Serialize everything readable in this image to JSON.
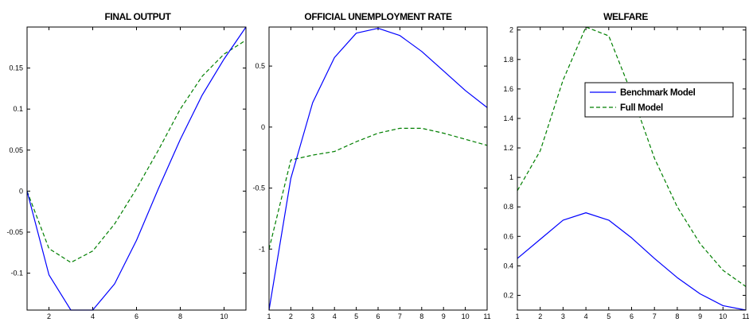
{
  "colors": {
    "benchmark": "#0000ff",
    "full": "#007f00",
    "axis": "#000000",
    "background": "#ffffff"
  },
  "legend": {
    "items": [
      {
        "label": "Benchmark Model",
        "style": "solid",
        "color": "#0000ff"
      },
      {
        "label": "Full Model",
        "style": "dashed",
        "color": "#007f00"
      }
    ],
    "location": "upper-middle of third panel"
  },
  "chart_data": [
    {
      "type": "line",
      "title": "FINAL OUTPUT",
      "xlabel": "",
      "ylabel": "",
      "xlim": [
        1,
        11
      ],
      "ylim": [
        -0.145,
        0.2
      ],
      "xticks": [
        2,
        4,
        6,
        8,
        10
      ],
      "yticks": [
        -0.1,
        -0.05,
        0,
        0.05,
        0.1,
        0.15
      ],
      "ytick_labels": [
        "-0.1",
        "-0.05",
        "0",
        "0.05",
        "0.1",
        "0.15"
      ],
      "grid": false,
      "x": [
        1,
        2,
        3,
        4,
        5,
        6,
        7,
        8,
        9,
        10,
        11
      ],
      "series": [
        {
          "name": "Benchmark Model",
          "style": "solid",
          "color": "#0000ff",
          "values": [
            0,
            -0.102,
            -0.145,
            -0.145,
            -0.113,
            -0.06,
            0.003,
            0.063,
            0.117,
            0.161,
            0.2
          ]
        },
        {
          "name": "Full Model",
          "style": "dashed",
          "color": "#007f00",
          "values": [
            0,
            -0.07,
            -0.087,
            -0.073,
            -0.04,
            0.003,
            0.05,
            0.1,
            0.14,
            0.167,
            0.184
          ]
        }
      ]
    },
    {
      "type": "line",
      "title": "OFFICIAL UNEMPLOYMENT RATE",
      "xlabel": "",
      "ylabel": "",
      "xlim": [
        1,
        11
      ],
      "ylim": [
        -1.5,
        0.82
      ],
      "xticks": [
        1,
        2,
        3,
        4,
        5,
        6,
        7,
        8,
        9,
        10,
        11
      ],
      "yticks": [
        -1,
        -0.5,
        0,
        0.5
      ],
      "ytick_labels": [
        "-1",
        "-0.5",
        "0",
        "0.5"
      ],
      "grid": false,
      "x": [
        1,
        2,
        3,
        4,
        5,
        6,
        7,
        8,
        9,
        10,
        11
      ],
      "series": [
        {
          "name": "Benchmark Model",
          "style": "solid",
          "color": "#0000ff",
          "values": [
            -1.5,
            -0.42,
            0.2,
            0.57,
            0.77,
            0.81,
            0.75,
            0.62,
            0.46,
            0.3,
            0.16
          ]
        },
        {
          "name": "Full Model",
          "style": "dashed",
          "color": "#007f00",
          "values": [
            -1.0,
            -0.27,
            -0.23,
            -0.2,
            -0.12,
            -0.05,
            -0.01,
            -0.01,
            -0.05,
            -0.1,
            -0.15
          ]
        }
      ]
    },
    {
      "type": "line",
      "title": "WELFARE",
      "xlabel": "",
      "ylabel": "",
      "xlim": [
        1,
        11
      ],
      "ylim": [
        0.1,
        2.02
      ],
      "xticks": [
        1,
        2,
        3,
        4,
        5,
        6,
        7,
        8,
        9,
        10,
        11
      ],
      "yticks": [
        0.2,
        0.4,
        0.6,
        0.8,
        1,
        1.2,
        1.4,
        1.6,
        1.8,
        2
      ],
      "ytick_labels": [
        "0.2",
        "0.4",
        "0.6",
        "0.8",
        "1",
        "1.2",
        "1.4",
        "1.6",
        "1.8",
        "2"
      ],
      "grid": false,
      "x": [
        1,
        2,
        3,
        4,
        5,
        6,
        7,
        8,
        9,
        10,
        11
      ],
      "series": [
        {
          "name": "Benchmark Model",
          "style": "solid",
          "color": "#0000ff",
          "values": [
            0.45,
            0.58,
            0.71,
            0.76,
            0.71,
            0.59,
            0.45,
            0.32,
            0.21,
            0.13,
            0.07
          ]
        },
        {
          "name": "Full Model",
          "style": "dashed",
          "color": "#007f00",
          "values": [
            0.91,
            1.18,
            1.66,
            2.02,
            1.96,
            1.57,
            1.13,
            0.8,
            0.55,
            0.37,
            0.26
          ]
        }
      ]
    }
  ]
}
